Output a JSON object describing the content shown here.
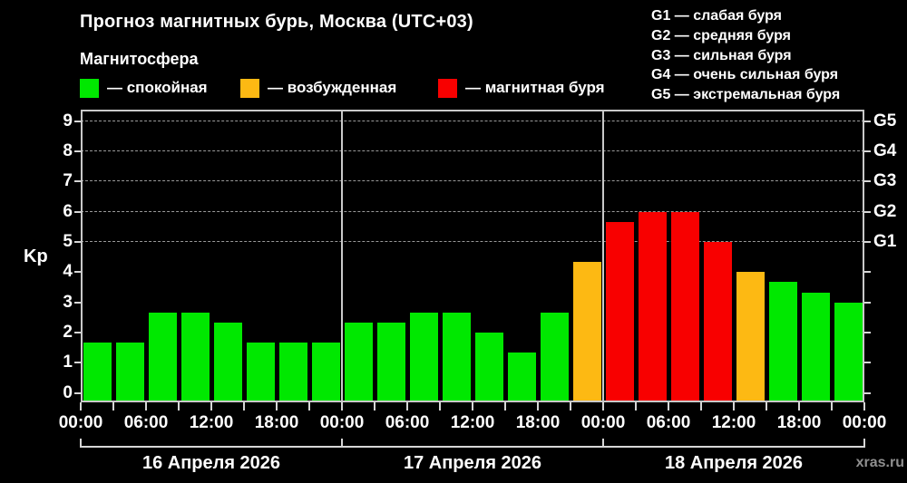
{
  "header": {
    "title": "Прогноз магнитных бурь, Москва (UTC+03)",
    "subtitle": "Магнитосфера"
  },
  "legend": {
    "items": [
      {
        "name": "quiet",
        "label": "— спокойная",
        "color": "#00e800"
      },
      {
        "name": "excited",
        "label": "— возбужденная",
        "color": "#fdb913"
      },
      {
        "name": "storm",
        "label": "— магнитная буря",
        "color": "#f80000"
      }
    ]
  },
  "g_legend": {
    "items": [
      "G1 — слабая буря",
      "G2 — средняя буря",
      "G3 — сильная буря",
      "G4 — очень сильная буря",
      "G5 — экстремальная буря"
    ]
  },
  "chart_data": {
    "type": "bar",
    "title": "Прогноз магнитных бурь, Москва (UTC+03)",
    "ylabel": "Kp",
    "ylim": [
      0,
      9
    ],
    "yticks": [
      0,
      1,
      2,
      3,
      4,
      5,
      6,
      7,
      8,
      9
    ],
    "grid_values": [
      5,
      6,
      7,
      8,
      9
    ],
    "grid_style": "dashed",
    "right_axis": {
      "labels": [
        "G1",
        "G2",
        "G3",
        "G4",
        "G5"
      ],
      "values": [
        5,
        6,
        7,
        8,
        9
      ]
    },
    "time_ticks": [
      "00:00",
      "06:00",
      "12:00",
      "18:00"
    ],
    "end_tick_label": "00:00",
    "hours_per_bar": 3,
    "color_thresholds": {
      "excited_from": 4,
      "storm_from": 5
    },
    "days": [
      {
        "date": "16 Апреля 2026",
        "values": [
          1.67,
          1.67,
          2.67,
          2.67,
          2.33,
          1.67,
          1.67,
          1.67
        ]
      },
      {
        "date": "17 Апреля 2026",
        "values": [
          2.33,
          2.33,
          2.67,
          2.67,
          2.0,
          1.33,
          2.67,
          4.33
        ]
      },
      {
        "date": "18 Апреля 2026",
        "values": [
          5.67,
          6.0,
          6.0,
          5.0,
          4.0,
          3.67,
          3.33,
          3.0
        ]
      }
    ]
  },
  "watermark": "xras.ru",
  "colors": {
    "background": "#000000",
    "text": "#ffffff",
    "frame": "#c9c9c9",
    "grid": "#9a9a9a",
    "quiet": "#00e800",
    "excited": "#fdb913",
    "storm": "#f80000",
    "watermark": "#8f8f8f"
  }
}
